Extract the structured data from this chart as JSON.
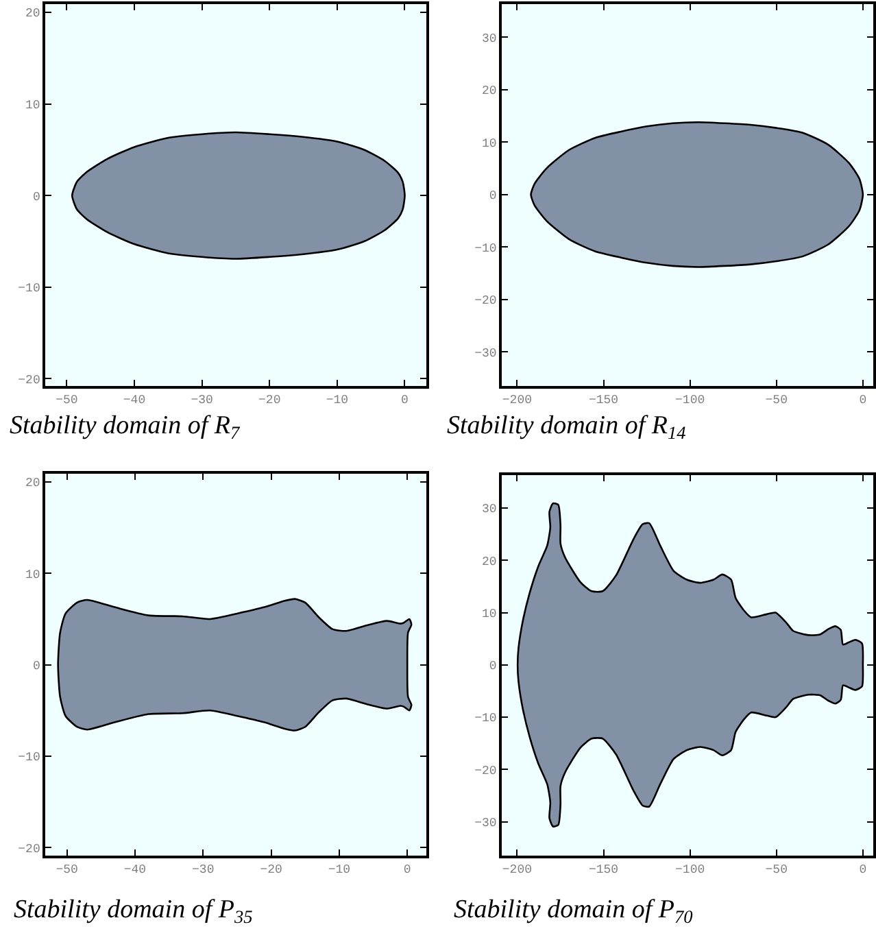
{
  "chart_data": [
    {
      "type": "area",
      "title": "Stability domain of R$_{7}$",
      "xlim": [
        -53.2,
        3.2
      ],
      "ylim": [
        -20.8,
        20.9
      ],
      "xticks": [
        -50,
        -40,
        -30,
        -20,
        -10,
        0
      ],
      "yticks": [
        -20,
        -10,
        0,
        10,
        20
      ],
      "series": [
        {
          "color": "#8391a6",
          "x": [
            0,
            -0.3,
            -1,
            -3,
            -6,
            -10,
            -15,
            -20,
            -25,
            -30,
            -35,
            -40,
            -44,
            -47,
            -48.5,
            -49.2,
            -48.5,
            -47,
            -44,
            -40,
            -35,
            -30,
            -25,
            -20,
            -15,
            -10,
            -6,
            -3,
            -1,
            -0.3,
            0
          ],
          "values": [
            0,
            1.5,
            2.5,
            3.8,
            5,
            5.9,
            6.4,
            6.7,
            6.9,
            6.7,
            6.3,
            5.3,
            4,
            2.6,
            1.5,
            0,
            -1.5,
            -2.6,
            -4,
            -5.3,
            -6.3,
            -6.7,
            -6.9,
            -6.7,
            -6.4,
            -5.9,
            -5,
            -3.8,
            -2.5,
            -1.5,
            0
          ]
        }
      ]
    },
    {
      "type": "area",
      "title": "Stability domain of R$_{14}$",
      "xlim": [
        -209,
        6
      ],
      "ylim": [
        -36.5,
        36.3
      ],
      "xticks": [
        -200,
        -150,
        -100,
        -50,
        0
      ],
      "yticks": [
        -30,
        -20,
        -10,
        0,
        10,
        20,
        30
      ],
      "series": [
        {
          "color": "#8391a6",
          "x": [
            0,
            -2,
            -8,
            -20,
            -35,
            -50,
            -65,
            -80,
            -95,
            -110,
            -125,
            -140,
            -155,
            -170,
            -183,
            -190,
            -192,
            -190,
            -183,
            -170,
            -155,
            -140,
            -125,
            -110,
            -95,
            -80,
            -65,
            -50,
            -35,
            -20,
            -8,
            -2,
            0
          ],
          "values": [
            0,
            3,
            6,
            9.5,
            11.8,
            12.7,
            13.3,
            13.6,
            13.8,
            13.6,
            13,
            12,
            10.8,
            8.5,
            5,
            2,
            0,
            -2,
            -5,
            -8.5,
            -10.8,
            -12,
            -13,
            -13.6,
            -13.8,
            -13.6,
            -13.3,
            -12.7,
            -11.8,
            -9.5,
            -6,
            -3,
            0
          ]
        }
      ]
    },
    {
      "type": "area",
      "title": "Stability domain of P$_{35}$",
      "xlim": [
        -53.2,
        2.8
      ],
      "ylim": [
        -20.9,
        20.9
      ],
      "xticks": [
        -50,
        -40,
        -30,
        -20,
        -10,
        0
      ],
      "yticks": [
        -20,
        -10,
        0,
        10,
        20
      ],
      "series": [
        {
          "color": "#8391a6",
          "x": [
            0,
            0.1,
            0.6,
            0.3,
            -0.5,
            -1,
            -3,
            -6,
            -9,
            -11,
            -13,
            -15,
            -16.5,
            -18,
            -21,
            -25,
            -29,
            -33,
            -38,
            -43,
            -47,
            -48.5,
            -50.2,
            -51,
            -51.3,
            -51,
            -50.2,
            -48.5,
            -47,
            -43,
            -38,
            -33,
            -29,
            -25,
            -21,
            -18,
            -16.5,
            -15,
            -13,
            -11,
            -9,
            -6,
            -3,
            -1,
            -0.5,
            0.3,
            0.6,
            0.1,
            0
          ],
          "values": [
            0,
            3.5,
            4.4,
            5,
            4.6,
            4.5,
            4.8,
            4.3,
            3.7,
            3.9,
            5.2,
            6.8,
            7.2,
            7,
            6.3,
            5.6,
            5,
            5.3,
            5.4,
            6.3,
            7.1,
            6.8,
            5.6,
            3.5,
            0,
            -3.5,
            -5.6,
            -6.8,
            -7.1,
            -6.3,
            -5.4,
            -5.3,
            -5,
            -5.6,
            -6.3,
            -7,
            -7.2,
            -6.8,
            -5.2,
            -3.9,
            -3.7,
            -4.3,
            -4.8,
            -4.5,
            -4.6,
            -5,
            -4.4,
            -3.5,
            0
          ]
        }
      ]
    },
    {
      "type": "area",
      "title": "Stability domain of P$_{70}$",
      "xlim": [
        -209,
        6
      ],
      "ylim": [
        -36.5,
        36.3
      ],
      "xticks": [
        -200,
        -150,
        -100,
        -50,
        0
      ],
      "yticks": [
        -30,
        -20,
        -10,
        0,
        10,
        20,
        30
      ],
      "series": [
        {
          "color": "#8391a6",
          "x": [
            0,
            -0.5,
            -4.4,
            -8.2,
            -11.5,
            -12.8,
            -15.9,
            -19.7,
            -24.9,
            -31.3,
            -40.3,
            -44.1,
            -50.5,
            -55.6,
            -64.6,
            -68.5,
            -73.6,
            -76.2,
            -81.3,
            -86.4,
            -94.1,
            -101.8,
            -109.5,
            -117.2,
            -123.6,
            -127.4,
            -132.6,
            -142.8,
            -150.5,
            -156.9,
            -163.3,
            -172.3,
            -174.9,
            -174.9,
            -176.2,
            -179.2,
            -181.3,
            -180.8,
            -182.6,
            -187.7,
            -192.8,
            -196.7,
            -199.2,
            -199.7,
            -199.2,
            -196.7,
            -192.8,
            -187.7,
            -182.6,
            -180.8,
            -181.3,
            -179.2,
            -176.2,
            -174.9,
            -174.9,
            -172.3,
            -163.3,
            -156.9,
            -150.5,
            -142.8,
            -132.6,
            -127.4,
            -123.6,
            -117.2,
            -109.5,
            -101.8,
            -94.1,
            -86.4,
            -81.3,
            -76.2,
            -73.6,
            -68.5,
            -64.6,
            -55.6,
            -50.5,
            -44.1,
            -40.3,
            -31.3,
            -24.9,
            -19.7,
            -15.9,
            -12.8,
            -11.5,
            -8.2,
            -4.4,
            -0.5,
            0
          ],
          "values": [
            0,
            4.1,
            4.8,
            4.3,
            3.9,
            6.7,
            7.4,
            6.9,
            5.8,
            5.7,
            6.5,
            8.0,
            10.0,
            9.7,
            9.1,
            10.3,
            12.8,
            16.3,
            17.3,
            16.3,
            15.7,
            16.3,
            18.0,
            22.8,
            27.1,
            26.9,
            24.1,
            17.1,
            14.1,
            14.1,
            15.8,
            20.6,
            23.2,
            26.7,
            30.6,
            30.9,
            29.3,
            26.3,
            22.8,
            18.9,
            13.7,
            8.4,
            3.2,
            0,
            -3.2,
            -8.4,
            -13.7,
            -18.9,
            -22.8,
            -26.3,
            -29.3,
            -30.9,
            -30.6,
            -26.7,
            -23.2,
            -20.6,
            -15.8,
            -14.1,
            -14.1,
            -17.1,
            -24.1,
            -26.9,
            -27.1,
            -22.8,
            -18.0,
            -16.3,
            -15.7,
            -16.3,
            -17.3,
            -16.3,
            -12.8,
            -10.3,
            -9.1,
            -9.7,
            -10.0,
            -8.0,
            -6.5,
            -5.7,
            -5.8,
            -6.9,
            -7.4,
            -6.7,
            -3.9,
            -4.3,
            -4.8,
            -4.1,
            0
          ]
        }
      ]
    }
  ]
}
